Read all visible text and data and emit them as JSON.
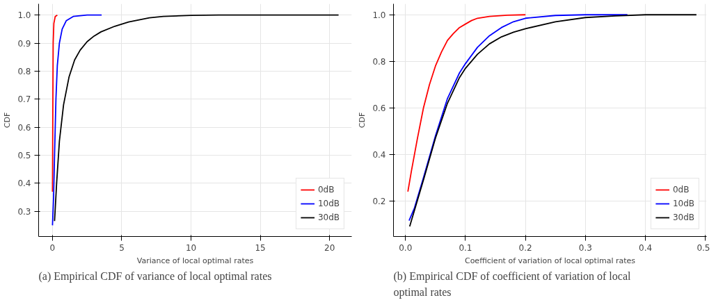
{
  "chart_data": [
    {
      "type": "line",
      "title": "(a) Empirical CDF of variance of local optimal rates",
      "xlabel": "Variance of local optimal rates",
      "ylabel": "CDF",
      "xlim": [
        -1.0,
        21.6
      ],
      "ylim": [
        0.21,
        1.04
      ],
      "xticks": [
        0,
        5,
        10,
        15,
        20
      ],
      "yticks": [
        0.3,
        0.4,
        0.5,
        0.6,
        0.7,
        0.8,
        0.9,
        {
          "value": 1,
          "label": "1.0"
        }
      ],
      "grid": true,
      "legend": "bottom right",
      "line_style": "solid",
      "series": [
        {
          "name": "0dB",
          "color": "#ff0000",
          "x": [
            0.0,
            0.02,
            0.05,
            0.1,
            0.2,
            0.35
          ],
          "values": [
            0.37,
            0.6,
            0.9,
            0.97,
            0.995,
            1.0
          ]
        },
        {
          "name": "10dB",
          "color": "#0000ff",
          "x": [
            0.0,
            0.08,
            0.15,
            0.25,
            0.35,
            0.5,
            0.7,
            1.0,
            1.5,
            2.5,
            3.55
          ],
          "values": [
            0.25,
            0.35,
            0.5,
            0.7,
            0.82,
            0.9,
            0.95,
            0.98,
            0.995,
            1.0,
            1.0
          ]
        },
        {
          "name": "30dB",
          "color": "#000000",
          "x": [
            0.15,
            0.3,
            0.5,
            0.8,
            1.2,
            1.6,
            2.0,
            2.5,
            3.0,
            3.5,
            4.5,
            5.5,
            7,
            8,
            10,
            12,
            20.65
          ],
          "values": [
            0.265,
            0.4,
            0.55,
            0.68,
            0.78,
            0.84,
            0.875,
            0.905,
            0.925,
            0.94,
            0.96,
            0.975,
            0.99,
            0.995,
            0.999,
            1.0,
            1.0
          ]
        }
      ]
    },
    {
      "type": "line",
      "title": "(b) Empirical CDF of coefficient of variation of local optimal rates",
      "xlabel": "Coefficient of variation of local optimal rates",
      "ylabel": "CDF",
      "xlim": [
        -0.02,
        0.502
      ],
      "ylim": [
        0.047,
        1.047
      ],
      "xticks": [
        {
          "value": 0,
          "label": "0.0"
        },
        0.1,
        0.2,
        0.3,
        0.4,
        0.5
      ],
      "yticks": [
        0.2,
        0.4,
        0.6,
        0.8,
        {
          "value": 1,
          "label": "1.0"
        }
      ],
      "grid": true,
      "legend": "bottom right",
      "line_style": "solid",
      "series": [
        {
          "name": "0dB",
          "color": "#ff0000",
          "x": [
            0.004,
            0.01,
            0.02,
            0.03,
            0.04,
            0.05,
            0.06,
            0.07,
            0.08,
            0.09,
            0.1,
            0.11,
            0.12,
            0.14,
            0.17,
            0.2
          ],
          "values": [
            0.24,
            0.33,
            0.47,
            0.6,
            0.7,
            0.78,
            0.84,
            0.89,
            0.92,
            0.945,
            0.96,
            0.975,
            0.985,
            0.993,
            0.998,
            1.0
          ]
        },
        {
          "name": "10dB",
          "color": "#0000ff",
          "x": [
            0.006,
            0.015,
            0.03,
            0.05,
            0.07,
            0.09,
            0.1,
            0.12,
            0.14,
            0.16,
            0.18,
            0.2,
            0.25,
            0.3,
            0.37
          ],
          "values": [
            0.115,
            0.17,
            0.3,
            0.48,
            0.64,
            0.75,
            0.79,
            0.86,
            0.91,
            0.945,
            0.97,
            0.985,
            0.997,
            1.0,
            1.0
          ]
        },
        {
          "name": "30dB",
          "color": "#000000",
          "x": [
            0.007,
            0.015,
            0.03,
            0.05,
            0.07,
            0.09,
            0.1,
            0.12,
            0.14,
            0.16,
            0.18,
            0.2,
            0.25,
            0.3,
            0.35,
            0.4,
            0.485
          ],
          "values": [
            0.09,
            0.16,
            0.29,
            0.47,
            0.62,
            0.73,
            0.77,
            0.83,
            0.875,
            0.905,
            0.925,
            0.94,
            0.97,
            0.988,
            0.995,
            1.0,
            1.0
          ]
        }
      ]
    }
  ]
}
